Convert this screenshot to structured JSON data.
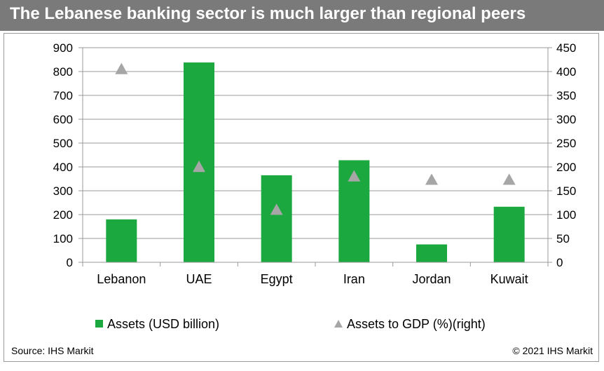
{
  "title": "The Lebanese banking sector is much larger than regional peers",
  "source": "Source: IHS Markit",
  "copyright": "© 2021 IHS Markit",
  "colors": {
    "bar": "#1ba83e",
    "marker": "#a6a6a6",
    "title_bg": "#7a7a7a"
  },
  "chart_data": {
    "type": "bar",
    "categories": [
      "Lebanon",
      "UAE",
      "Egypt",
      "Iran",
      "Jordan",
      "Kuwait"
    ],
    "series": [
      {
        "name": "Assets (USD billion)",
        "type": "bar",
        "axis": "left",
        "values": [
          180,
          838,
          365,
          428,
          75,
          233
        ]
      },
      {
        "name": "Assets to GDP (%)(right)",
        "type": "scatter",
        "marker": "triangle",
        "axis": "right",
        "values": [
          405,
          200,
          110,
          180,
          173,
          173
        ]
      }
    ],
    "ylim": [
      0,
      900
    ],
    "yticks": [
      0,
      100,
      200,
      300,
      400,
      500,
      600,
      700,
      800,
      900
    ],
    "y2lim": [
      0,
      450
    ],
    "y2ticks": [
      0,
      50,
      100,
      150,
      200,
      250,
      300,
      350,
      400,
      450
    ],
    "grid": true,
    "legend_position": "bottom"
  }
}
